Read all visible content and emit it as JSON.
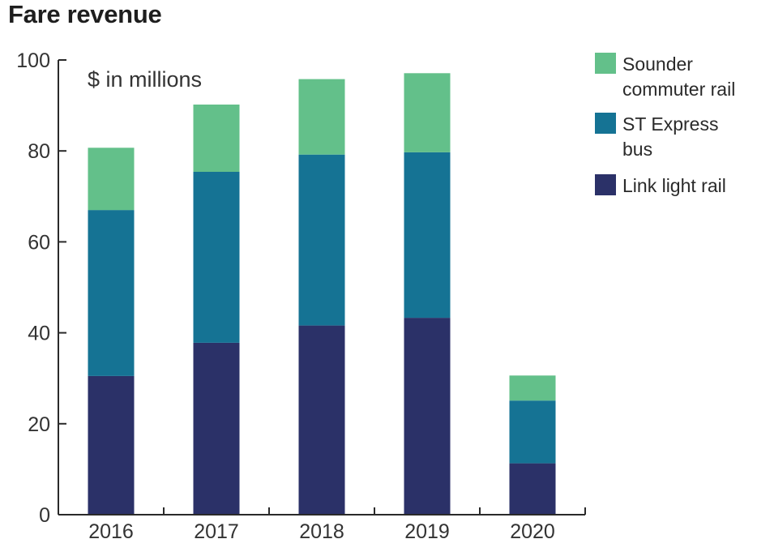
{
  "chart_data": {
    "type": "bar",
    "stacked": true,
    "title": "Fare revenue",
    "unit_note": "$ in millions",
    "xlabel": "",
    "ylabel": "",
    "ylim": [
      0,
      100
    ],
    "yticks": [
      0,
      20,
      40,
      60,
      80,
      100
    ],
    "grid": false,
    "legend_position": "right",
    "categories": [
      "2016",
      "2017",
      "2018",
      "2019",
      "2020"
    ],
    "series": [
      {
        "name": "Link light rail",
        "color": "#2b3168",
        "values": [
          30.5,
          37.8,
          41.6,
          43.3,
          11.3
        ]
      },
      {
        "name": "ST Express bus",
        "color": "#157394",
        "values": [
          36.5,
          37.6,
          37.6,
          36.4,
          13.8
        ]
      },
      {
        "name": "Sounder commuter rail",
        "color": "#63c08a",
        "values": [
          13.7,
          14.8,
          16.6,
          17.4,
          5.5
        ]
      }
    ]
  },
  "legend": [
    {
      "label": "Sounder commuter rail",
      "color": "#63c08a"
    },
    {
      "label": "ST Express bus",
      "color": "#157394"
    },
    {
      "label": "Link light rail",
      "color": "#2b3168"
    }
  ]
}
